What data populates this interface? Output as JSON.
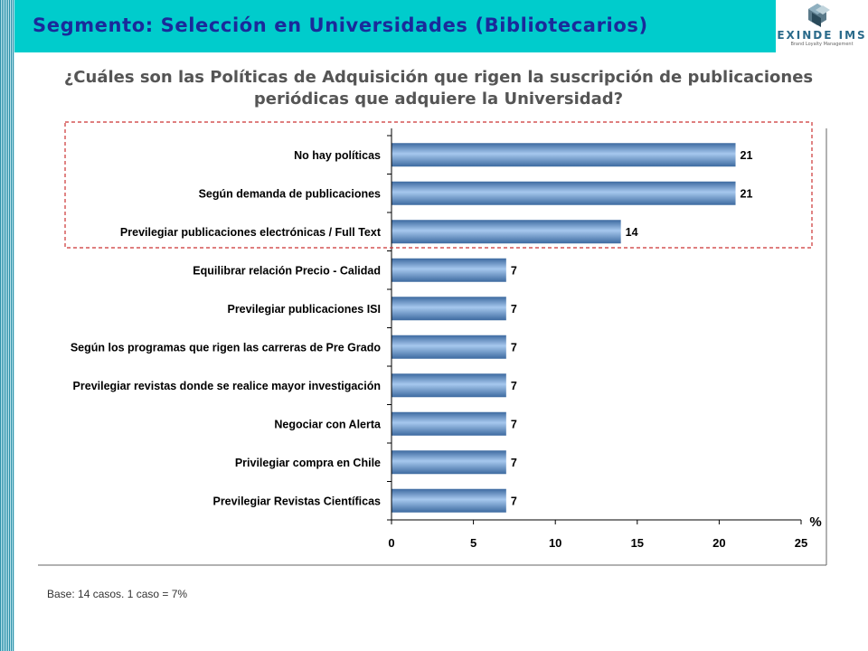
{
  "header": {
    "title": "Segmento: Selección en Universidades (Bibliotecarios)",
    "logo_text": "EXINDE IMS",
    "logo_tagline": "Brand Loyalty Management",
    "logo_icon": "cube-logo-icon"
  },
  "question_line1": "¿Cuáles son las Políticas de Adquisición que rigen la suscripción de publicaciones",
  "question_line2": "periódicas que adquiere la Universidad?",
  "footnote": "Base: 14 casos.  1 caso = 7%",
  "colors": {
    "bar_light": "#a6c8ee",
    "bar_dark": "#3d6aa0",
    "highlight_border": "#cc3333",
    "header_bg": "#00cccc",
    "title_text": "#1a2a9a"
  },
  "chart_data": {
    "type": "bar",
    "orientation": "horizontal",
    "categories": [
      "No hay políticas",
      "Según demanda de publicaciones",
      "Previlegiar publicaciones electrónicas / Full Text",
      "Equilibrar relación Precio - Calidad",
      "Previlegiar publicaciones ISI",
      "Según los programas que rigen las carreras de Pre Grado",
      "Previlegiar revistas donde se realice mayor investigación",
      "Negociar con Alerta",
      "Privilegiar compra en Chile",
      "Previlegiar Revistas Científicas"
    ],
    "values": [
      21,
      21,
      14,
      7,
      7,
      7,
      7,
      7,
      7,
      7
    ],
    "value_labels": [
      "21",
      "21",
      "14",
      "7",
      "7",
      "7",
      "7",
      "7",
      "7",
      "7"
    ],
    "xlim": [
      0,
      25
    ],
    "xticks": [
      "0",
      "5",
      "10",
      "15",
      "20",
      "25"
    ],
    "xlabel": "%",
    "highlighted_categories": [
      "No hay políticas",
      "Según demanda de publicaciones",
      "Previlegiar publicaciones electrónicas / Full Text"
    ],
    "grid": false,
    "legend": "none"
  }
}
